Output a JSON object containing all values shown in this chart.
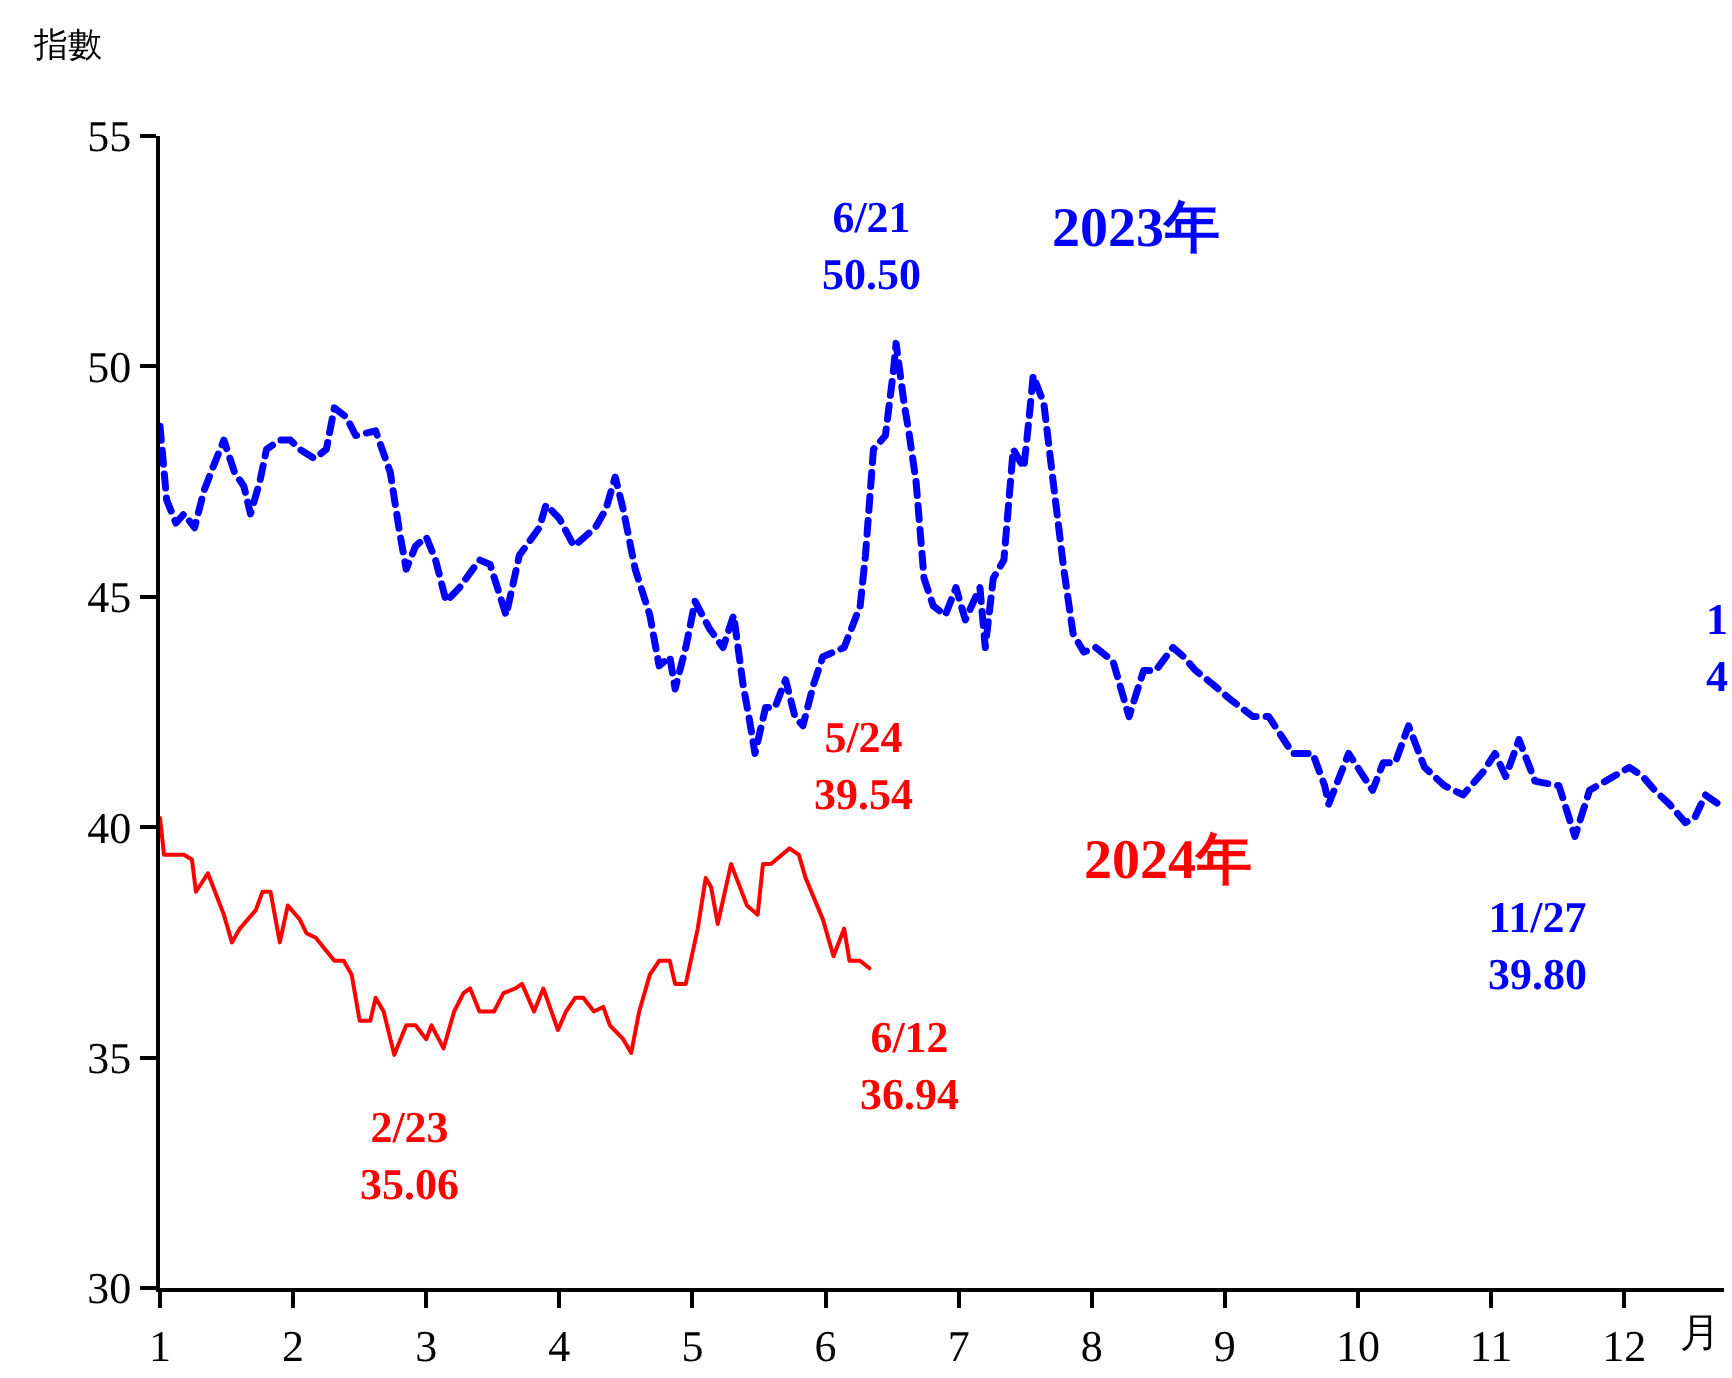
{
  "chart_data": {
    "type": "line",
    "ylabel": "指數",
    "xlabel": "月",
    "xlim": [
      1,
      12.75
    ],
    "xticks": [
      1,
      2,
      3,
      4,
      5,
      6,
      7,
      8,
      9,
      10,
      11,
      12
    ],
    "ylim": [
      30,
      55
    ],
    "yticks": [
      30,
      35,
      40,
      45,
      50,
      55
    ],
    "legend": false,
    "series": [
      {
        "name": "2023年",
        "color": "#0000ff",
        "line_style": "dashed",
        "x": [
          1.0,
          1.05,
          1.12,
          1.18,
          1.26,
          1.33,
          1.41,
          1.48,
          1.56,
          1.63,
          1.68,
          1.75,
          1.8,
          1.9,
          1.98,
          2.05,
          2.16,
          2.25,
          2.31,
          2.4,
          2.47,
          2.62,
          2.73,
          2.8,
          2.85,
          2.92,
          3.0,
          3.07,
          3.15,
          3.25,
          3.4,
          3.48,
          3.6,
          3.7,
          3.85,
          3.9,
          4.0,
          4.11,
          4.27,
          4.35,
          4.42,
          4.48,
          4.57,
          4.68,
          4.75,
          4.83,
          4.87,
          4.95,
          5.02,
          5.13,
          5.23,
          5.31,
          5.38,
          5.43,
          5.47,
          5.55,
          5.62,
          5.7,
          5.77,
          5.83,
          5.91,
          5.98,
          6.14,
          6.26,
          6.3,
          6.36,
          6.45,
          6.51,
          6.53,
          6.59,
          6.63,
          6.68,
          6.74,
          6.81,
          6.9,
          6.98,
          7.05,
          7.16,
          7.2,
          7.26,
          7.34,
          7.41,
          7.49,
          7.53,
          7.56,
          7.64,
          7.71,
          7.79,
          7.86,
          7.94,
          8.03,
          8.16,
          8.28,
          8.39,
          8.48,
          8.61,
          8.69,
          8.78,
          8.91,
          9.03,
          9.21,
          9.33,
          9.51,
          9.66,
          9.75,
          9.78,
          9.93,
          10.11,
          10.19,
          10.28,
          10.38,
          10.5,
          10.65,
          10.79,
          10.94,
          11.03,
          11.11,
          11.21,
          11.33,
          11.51,
          11.63,
          11.74,
          11.86,
          12.04,
          12.14,
          12.23,
          12.34,
          12.46,
          12.53,
          12.61,
          12.71
        ],
        "values": [
          48.7,
          47.1,
          46.6,
          46.8,
          46.5,
          47.3,
          47.9,
          48.4,
          47.7,
          47.4,
          46.8,
          47.5,
          48.2,
          48.4,
          48.4,
          48.2,
          48.0,
          48.2,
          49.1,
          48.9,
          48.5,
          48.6,
          47.7,
          46.4,
          45.6,
          46.1,
          46.3,
          45.8,
          44.9,
          45.2,
          45.8,
          45.7,
          44.6,
          45.9,
          46.5,
          47.0,
          46.7,
          46.1,
          46.5,
          46.9,
          47.6,
          46.9,
          45.6,
          44.6,
          43.5,
          43.7,
          43.0,
          43.9,
          44.9,
          44.3,
          43.9,
          44.6,
          43.1,
          42.3,
          41.6,
          42.6,
          42.6,
          43.2,
          42.4,
          42.2,
          43.1,
          43.7,
          43.9,
          44.8,
          45.9,
          48.2,
          48.5,
          49.9,
          50.5,
          49.2,
          48.5,
          47.5,
          45.4,
          44.8,
          44.6,
          45.2,
          44.5,
          45.2,
          43.9,
          45.4,
          45.8,
          48.2,
          47.8,
          48.9,
          49.8,
          49.2,
          47.5,
          45.6,
          44.2,
          43.8,
          43.9,
          43.6,
          42.4,
          43.4,
          43.4,
          43.9,
          43.7,
          43.4,
          43.1,
          42.8,
          42.4,
          42.4,
          41.6,
          41.6,
          40.9,
          40.5,
          41.6,
          40.8,
          41.4,
          41.4,
          42.2,
          41.3,
          40.9,
          40.7,
          41.2,
          41.6,
          41.1,
          41.9,
          41.0,
          40.9,
          39.8,
          40.8,
          41.0,
          41.3,
          41.1,
          40.8,
          40.5,
          40.1,
          40.2,
          40.7,
          40.5
        ]
      },
      {
        "name": "2024年",
        "color": "#ff0000",
        "line_style": "solid",
        "x": [
          1.0,
          1.03,
          1.18,
          1.24,
          1.27,
          1.36,
          1.48,
          1.54,
          1.6,
          1.72,
          1.77,
          1.83,
          1.9,
          1.96,
          2.05,
          2.1,
          2.17,
          2.31,
          2.38,
          2.44,
          2.5,
          2.58,
          2.62,
          2.68,
          2.76,
          2.85,
          2.92,
          3.0,
          3.04,
          3.13,
          3.21,
          3.28,
          3.33,
          3.4,
          3.51,
          3.58,
          3.67,
          3.72,
          3.81,
          3.88,
          3.99,
          4.05,
          4.12,
          4.18,
          4.26,
          4.33,
          4.38,
          4.48,
          4.54,
          4.6,
          4.68,
          4.75,
          4.83,
          4.87,
          4.95,
          5.01,
          5.04,
          5.1,
          5.14,
          5.19,
          5.29,
          5.41,
          5.49,
          5.53,
          5.59,
          5.73,
          5.8,
          5.85,
          5.98,
          6.06,
          6.14,
          6.18,
          6.26,
          6.33
        ],
        "values": [
          40.2,
          39.4,
          39.4,
          39.3,
          38.6,
          39.0,
          38.1,
          37.5,
          37.8,
          38.2,
          38.6,
          38.6,
          37.5,
          38.3,
          38.0,
          37.7,
          37.6,
          37.1,
          37.1,
          36.8,
          35.8,
          35.8,
          36.3,
          36.0,
          35.06,
          35.7,
          35.7,
          35.4,
          35.7,
          35.2,
          36.0,
          36.4,
          36.5,
          36.0,
          36.0,
          36.4,
          36.5,
          36.6,
          36.0,
          36.5,
          35.6,
          36.0,
          36.3,
          36.3,
          36.0,
          36.1,
          35.7,
          35.4,
          35.1,
          36.0,
          36.8,
          37.1,
          37.1,
          36.6,
          36.6,
          37.4,
          37.8,
          38.9,
          38.7,
          37.9,
          39.2,
          38.3,
          38.1,
          39.2,
          39.2,
          39.54,
          39.4,
          38.9,
          38.0,
          37.2,
          37.8,
          37.1,
          37.1,
          36.94
        ]
      }
    ],
    "annotations": [
      {
        "text": "6/21\n50.50",
        "x": 6.53,
        "y": 50.5
      },
      {
        "text": "11/27\n39.80",
        "x": 11.63,
        "y": 39.8
      },
      {
        "text": "5/24\n39.54",
        "x": 5.73,
        "y": 39.54
      },
      {
        "text": "2/23\n35.06",
        "x": 2.76,
        "y": 35.06
      },
      {
        "text": "6/12\n36.94",
        "x": 6.33,
        "y": 36.94
      },
      "1\n4"
    ]
  }
}
